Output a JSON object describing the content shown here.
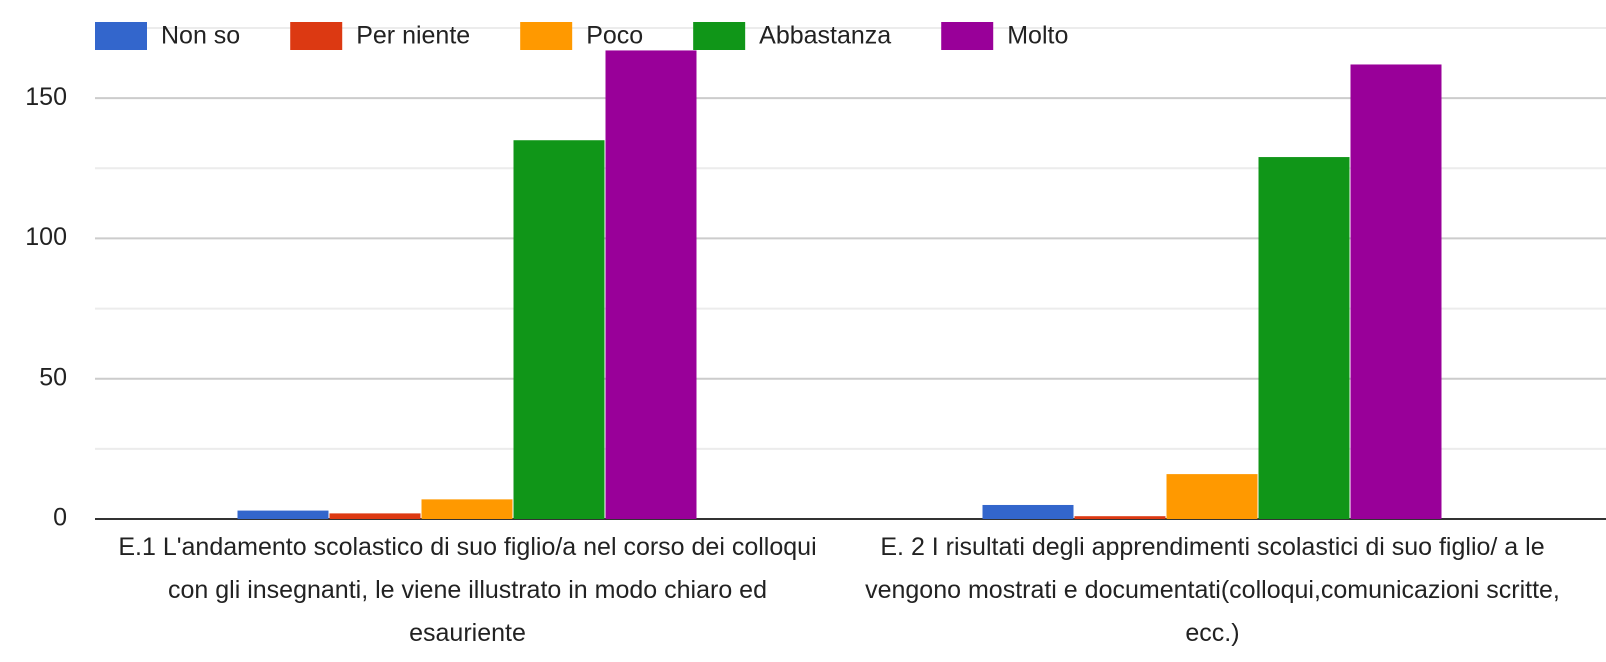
{
  "chart_data": {
    "type": "bar",
    "categories": [
      "E.1 L'andamento scolastico di suo figlio/a nel corso dei colloqui con gli insegnanti, le viene illustrato in modo chiaro ed esauriente",
      "E. 2 I risultati degli apprendimenti scolastici di suo figlio/ a le vengono mostrati e documentati(colloqui,comunicazioni scritte, ecc.)"
    ],
    "series": [
      {
        "name": "Non so",
        "color": "#3366cc",
        "values": [
          3,
          5
        ]
      },
      {
        "name": "Per niente",
        "color": "#dc3912",
        "values": [
          2,
          1
        ]
      },
      {
        "name": "Poco",
        "color": "#ff9900",
        "values": [
          7,
          16
        ]
      },
      {
        "name": "Abbastanza",
        "color": "#109618",
        "values": [
          135,
          129
        ]
      },
      {
        "name": "Molto",
        "color": "#990099",
        "values": [
          167,
          162
        ]
      }
    ],
    "ylim": [
      0,
      175
    ],
    "yticks": [
      0,
      50,
      100,
      150
    ],
    "minor_yticks": [
      25,
      75,
      125,
      175
    ],
    "grid": true,
    "legend": "top"
  }
}
